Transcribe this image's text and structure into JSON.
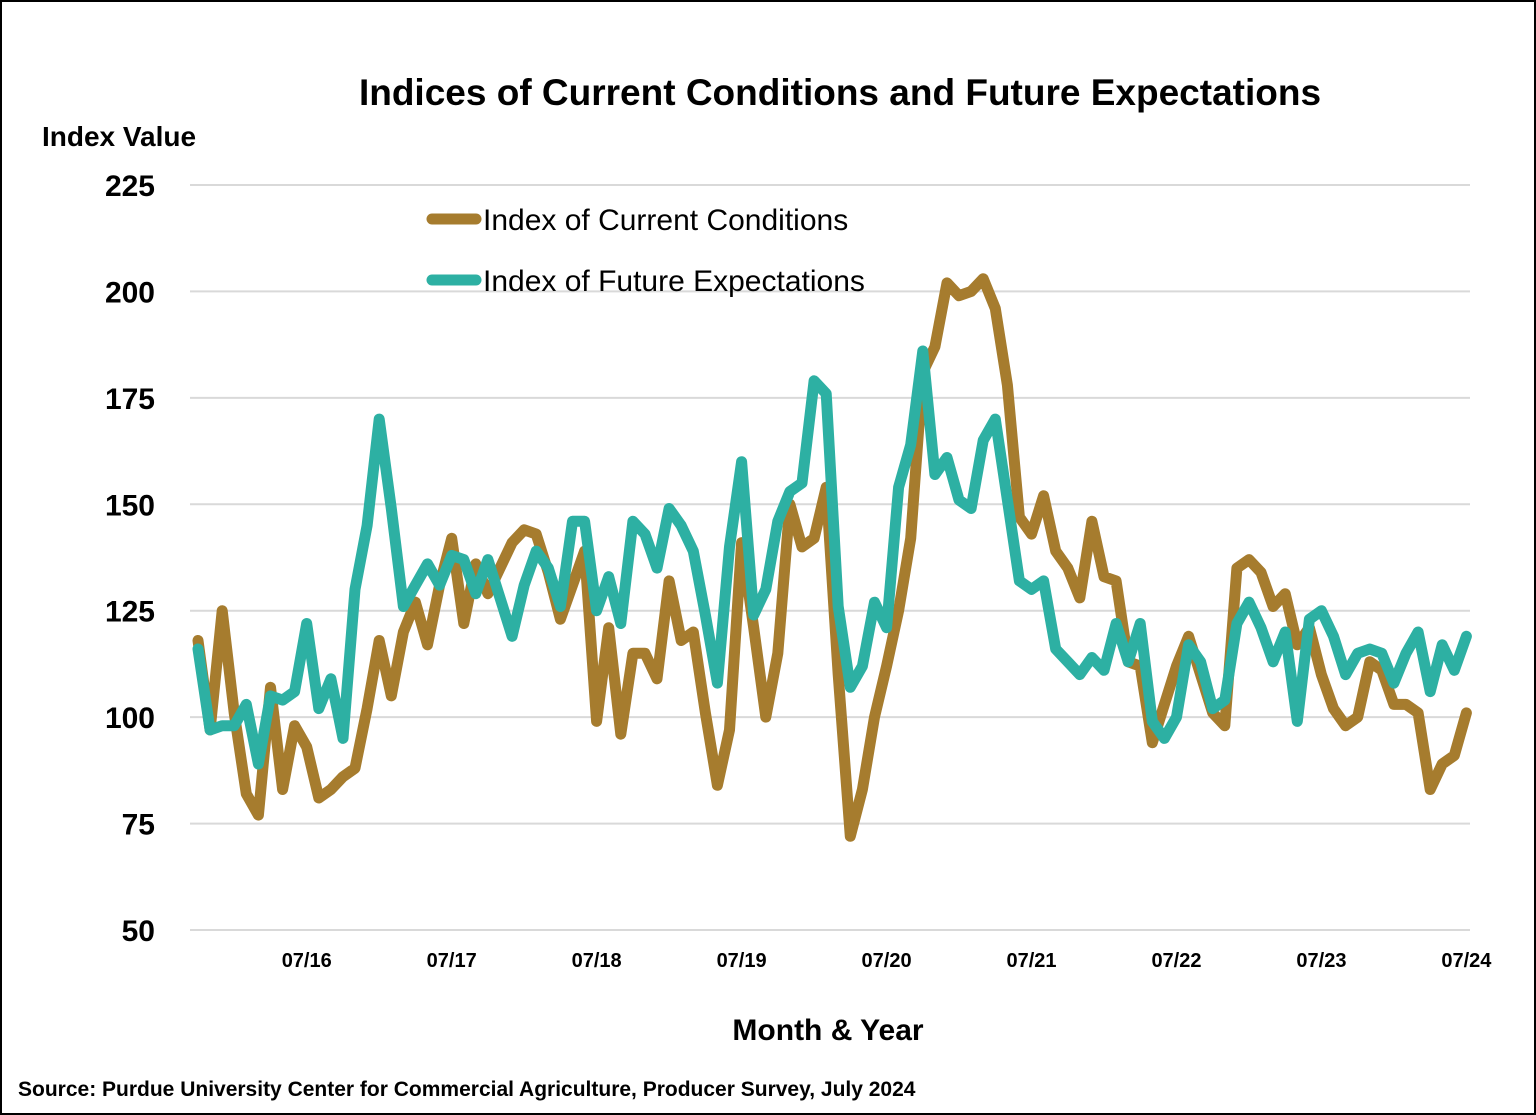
{
  "chart_data": {
    "type": "line",
    "title": "Indices of Current Conditions and Future Expectations",
    "ylabel": "Index Value",
    "xlabel": "Month & Year",
    "source": "Source: Purdue University Center for Commercial Agriculture, Producer Survey, July 2024",
    "ylim": [
      50,
      225
    ],
    "yticks": [
      50,
      75,
      100,
      125,
      150,
      175,
      200,
      225
    ],
    "xtick_labels": [
      "07/16",
      "07/17",
      "07/18",
      "07/19",
      "07/20",
      "07/21",
      "07/22",
      "07/23",
      "07/24"
    ],
    "grid": true,
    "legend_position": "top-left",
    "start_month": "10/15",
    "end_month": "07/24",
    "series": [
      {
        "name": "Index of Current Conditions",
        "color": "#A67C2E",
        "values": [
          118,
          97,
          125,
          101,
          82,
          77,
          107,
          83,
          98,
          93,
          81,
          83,
          86,
          88,
          102,
          118,
          105,
          120,
          127,
          117,
          131,
          142,
          122,
          136,
          129,
          135,
          141,
          144,
          143,
          134,
          123,
          131,
          139,
          99,
          121,
          96,
          115,
          115,
          109,
          132,
          118,
          120,
          101,
          84,
          97,
          141,
          121,
          100,
          115,
          150,
          140,
          142,
          154,
          110,
          72,
          83,
          100,
          112,
          125,
          142,
          181,
          187,
          202,
          199,
          200,
          203,
          196,
          178,
          147,
          143,
          152,
          139,
          135,
          128,
          146,
          133,
          132,
          113,
          112,
          94,
          103,
          112,
          119,
          110,
          101,
          98,
          135,
          137,
          134,
          126,
          129,
          117,
          121,
          110,
          102,
          98,
          100,
          113,
          111,
          103,
          103,
          101,
          83,
          89,
          91,
          101
        ]
      },
      {
        "name": "Index of Future Expectations",
        "color": "#2DB0A3",
        "values": [
          116,
          97,
          98,
          98,
          103,
          89,
          105,
          104,
          106,
          122,
          102,
          109,
          95,
          130,
          145,
          170,
          149,
          126,
          131,
          136,
          131,
          138,
          137,
          129,
          137,
          128,
          119,
          131,
          139,
          135,
          126,
          146,
          146,
          125,
          133,
          122,
          146,
          143,
          135,
          149,
          145,
          139,
          124,
          108,
          140,
          160,
          124,
          130,
          146,
          153,
          155,
          179,
          176,
          126,
          107,
          112,
          127,
          121,
          154,
          164,
          186,
          157,
          161,
          151,
          149,
          165,
          170,
          151,
          132,
          130,
          132,
          116,
          113,
          110,
          114,
          111,
          122,
          113,
          122,
          99,
          95,
          100,
          117,
          113,
          102,
          104,
          122,
          127,
          121,
          113,
          120,
          99,
          123,
          125,
          119,
          110,
          115,
          116,
          115,
          108,
          115,
          120,
          106,
          117,
          111,
          119
        ]
      }
    ]
  }
}
